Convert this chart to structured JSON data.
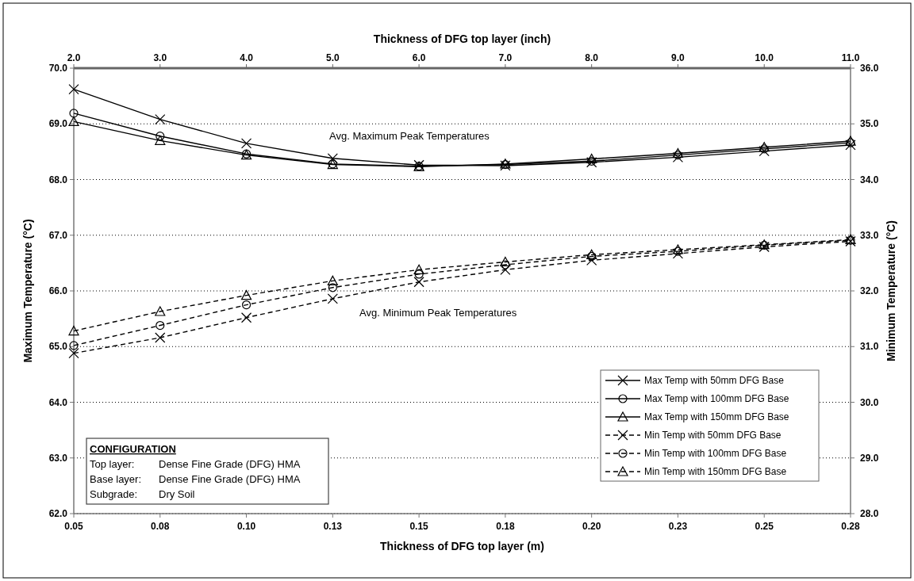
{
  "chart_data": {
    "type": "line",
    "xlabel": "Thickness of DFG top layer (m)",
    "x2label": "Thickness of DFG top layer (inch)",
    "ylabel": "Maximum Temperature (°C)",
    "y2label": "Minimum Temperature (°C)",
    "categories": [
      "0.05",
      "0.08",
      "0.10",
      "0.13",
      "0.15",
      "0.18",
      "0.20",
      "0.23",
      "0.25",
      "0.28"
    ],
    "x2lim": [
      2,
      11
    ],
    "x2ticks": [
      {
        "value": 2,
        "label": "2.0"
      },
      {
        "value": 3,
        "label": "3.0"
      },
      {
        "value": 4,
        "label": "4.0"
      },
      {
        "value": 5,
        "label": "5.0"
      },
      {
        "value": 6,
        "label": "6.0"
      },
      {
        "value": 7,
        "label": "7.0"
      },
      {
        "value": 8,
        "label": "8.0"
      },
      {
        "value": 9,
        "label": "9.0"
      },
      {
        "value": 10,
        "label": "10.0"
      },
      {
        "value": 11,
        "label": "11.0"
      }
    ],
    "ylim": [
      62,
      70
    ],
    "yticks": [
      {
        "value": 62,
        "label": "62.0"
      },
      {
        "value": 63,
        "label": "63.0"
      },
      {
        "value": 64,
        "label": "64.0"
      },
      {
        "value": 65,
        "label": "65.0"
      },
      {
        "value": 66,
        "label": "66.0"
      },
      {
        "value": 67,
        "label": "67.0"
      },
      {
        "value": 68,
        "label": "68.0"
      },
      {
        "value": 69,
        "label": "69.0"
      },
      {
        "value": 70,
        "label": "70.0"
      }
    ],
    "y2lim": [
      28,
      36
    ],
    "y2ticks": [
      {
        "value": 28,
        "label": "28.0"
      },
      {
        "value": 29,
        "label": "29.0"
      },
      {
        "value": 30,
        "label": "30.0"
      },
      {
        "value": 31,
        "label": "31.0"
      },
      {
        "value": 32,
        "label": "32.0"
      },
      {
        "value": 33,
        "label": "33.0"
      },
      {
        "value": 34,
        "label": "34.0"
      },
      {
        "value": 35,
        "label": "35.0"
      },
      {
        "value": 36,
        "label": "36.0"
      }
    ],
    "grid": "y",
    "legend": "bottom right",
    "series": [
      {
        "name": "Max Temp with 50mm DFG Base",
        "color": "#000000",
        "marker": "cross",
        "line_style": "solid",
        "values": [
          69.62,
          69.08,
          68.65,
          68.38,
          68.26,
          68.25,
          68.31,
          68.4,
          68.51,
          68.62
        ]
      },
      {
        "name": "Max Temp with 100mm DFG Base",
        "color": "#000000",
        "marker": "circle",
        "line_style": "solid",
        "values": [
          69.19,
          68.78,
          68.46,
          68.28,
          68.24,
          68.27,
          68.33,
          68.44,
          68.55,
          68.66
        ]
      },
      {
        "name": "Max Temp with 150mm DFG Base",
        "color": "#000000",
        "marker": "triangle",
        "line_style": "solid",
        "values": [
          69.04,
          68.7,
          68.44,
          68.27,
          68.23,
          68.28,
          68.37,
          68.47,
          68.58,
          68.69
        ]
      },
      {
        "name": "Min Temp with 50mm DFG Base",
        "color": "#000000",
        "marker": "cross",
        "line_style": "dashed",
        "axis": "y2",
        "values": [
          30.88,
          31.16,
          31.52,
          31.86,
          32.16,
          32.38,
          32.55,
          32.67,
          32.79,
          32.89
        ]
      },
      {
        "name": "Min Temp with 100mm DFG Base",
        "color": "#000000",
        "marker": "circle",
        "line_style": "dashed",
        "axis": "y2",
        "values": [
          31.02,
          31.38,
          31.75,
          32.06,
          32.3,
          32.47,
          32.62,
          32.71,
          32.82,
          32.91
        ]
      },
      {
        "name": "Min Temp with 150mm DFG Base",
        "color": "#000000",
        "marker": "triangle",
        "line_style": "dashed",
        "axis": "y2",
        "values": [
          31.28,
          31.63,
          31.92,
          32.18,
          32.38,
          32.52,
          32.65,
          32.74,
          32.83,
          32.92
        ]
      }
    ],
    "annotations": [
      "Avg. Maximum Peak Temperatures",
      "Avg. Minimum Peak Temperatures",
      "CONFIGURATION",
      "Top layer:",
      "Dense Fine Grade (DFG) HMA",
      "Base layer:",
      "Dense Fine Grade (DFG) HMA",
      "Subgrade:",
      "Dry Soil"
    ]
  }
}
